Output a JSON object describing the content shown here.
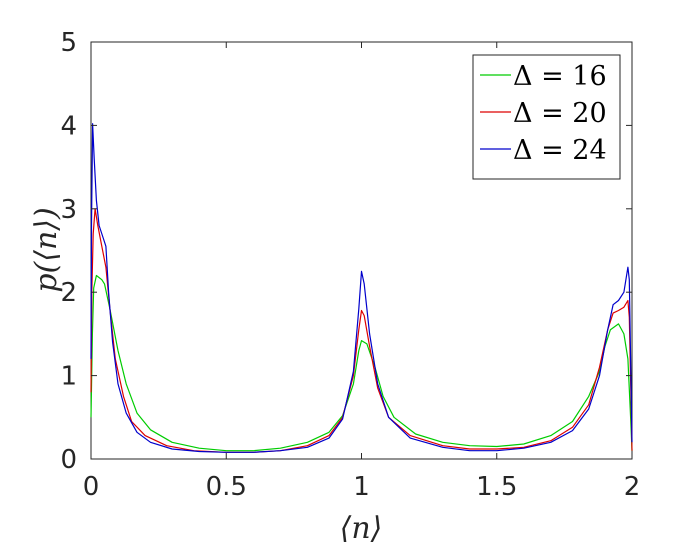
{
  "chart_data": {
    "type": "line",
    "xlabel": "⟨n⟩",
    "ylabel": "p(⟨n⟩)",
    "xlim": [
      0,
      2
    ],
    "ylim": [
      0,
      5
    ],
    "x_ticks": [
      "0",
      "0.5",
      "1",
      "1.5",
      "2"
    ],
    "y_ticks": [
      "0",
      "1",
      "2",
      "3",
      "4",
      "5"
    ],
    "legend_position": "top-right",
    "grid": false,
    "series": [
      {
        "name": "Δ = 16",
        "color": "#00cc00",
        "points": [
          [
            0,
            0.5
          ],
          [
            0.005,
            1.5
          ],
          [
            0.01,
            2.05
          ],
          [
            0.02,
            2.2
          ],
          [
            0.04,
            2.15
          ],
          [
            0.05,
            2.1
          ],
          [
            0.07,
            1.8
          ],
          [
            0.1,
            1.3
          ],
          [
            0.13,
            0.9
          ],
          [
            0.17,
            0.55
          ],
          [
            0.22,
            0.35
          ],
          [
            0.3,
            0.2
          ],
          [
            0.4,
            0.13
          ],
          [
            0.5,
            0.1
          ],
          [
            0.6,
            0.1
          ],
          [
            0.7,
            0.13
          ],
          [
            0.8,
            0.2
          ],
          [
            0.88,
            0.32
          ],
          [
            0.93,
            0.52
          ],
          [
            0.97,
            0.9
          ],
          [
            0.99,
            1.3
          ],
          [
            1.0,
            1.42
          ],
          [
            1.02,
            1.38
          ],
          [
            1.05,
            1.1
          ],
          [
            1.08,
            0.75
          ],
          [
            1.12,
            0.5
          ],
          [
            1.2,
            0.3
          ],
          [
            1.3,
            0.2
          ],
          [
            1.4,
            0.16
          ],
          [
            1.5,
            0.15
          ],
          [
            1.6,
            0.18
          ],
          [
            1.7,
            0.28
          ],
          [
            1.78,
            0.45
          ],
          [
            1.84,
            0.75
          ],
          [
            1.88,
            1.05
          ],
          [
            1.9,
            1.35
          ],
          [
            1.92,
            1.55
          ],
          [
            1.95,
            1.62
          ],
          [
            1.97,
            1.5
          ],
          [
            1.985,
            1.2
          ],
          [
            1.995,
            0.5
          ],
          [
            2.0,
            0.1
          ]
        ]
      },
      {
        "name": "Δ = 20",
        "color": "#dd0000",
        "points": [
          [
            0,
            0.8
          ],
          [
            0.003,
            2.0
          ],
          [
            0.008,
            2.7
          ],
          [
            0.015,
            3.0
          ],
          [
            0.025,
            2.8
          ],
          [
            0.04,
            2.55
          ],
          [
            0.055,
            2.3
          ],
          [
            0.07,
            1.8
          ],
          [
            0.09,
            1.2
          ],
          [
            0.12,
            0.75
          ],
          [
            0.15,
            0.45
          ],
          [
            0.2,
            0.28
          ],
          [
            0.28,
            0.16
          ],
          [
            0.38,
            0.1
          ],
          [
            0.5,
            0.08
          ],
          [
            0.6,
            0.08
          ],
          [
            0.7,
            0.1
          ],
          [
            0.8,
            0.16
          ],
          [
            0.88,
            0.28
          ],
          [
            0.93,
            0.5
          ],
          [
            0.97,
            1.0
          ],
          [
            0.99,
            1.55
          ],
          [
            1.0,
            1.78
          ],
          [
            1.01,
            1.72
          ],
          [
            1.03,
            1.35
          ],
          [
            1.06,
            0.85
          ],
          [
            1.1,
            0.5
          ],
          [
            1.18,
            0.28
          ],
          [
            1.3,
            0.16
          ],
          [
            1.4,
            0.12
          ],
          [
            1.5,
            0.12
          ],
          [
            1.6,
            0.14
          ],
          [
            1.7,
            0.22
          ],
          [
            1.78,
            0.38
          ],
          [
            1.84,
            0.65
          ],
          [
            1.88,
            1.1
          ],
          [
            1.91,
            1.55
          ],
          [
            1.93,
            1.75
          ],
          [
            1.95,
            1.78
          ],
          [
            1.97,
            1.82
          ],
          [
            1.985,
            1.9
          ],
          [
            1.99,
            1.7
          ],
          [
            1.997,
            0.6
          ],
          [
            2.0,
            0.1
          ]
        ]
      },
      {
        "name": "Δ = 24",
        "color": "#0000cc",
        "points": [
          [
            0,
            1.2
          ],
          [
            0.002,
            2.8
          ],
          [
            0.006,
            4.02
          ],
          [
            0.012,
            3.6
          ],
          [
            0.02,
            3.1
          ],
          [
            0.03,
            2.8
          ],
          [
            0.045,
            2.65
          ],
          [
            0.055,
            2.55
          ],
          [
            0.065,
            2.0
          ],
          [
            0.08,
            1.4
          ],
          [
            0.1,
            0.9
          ],
          [
            0.13,
            0.55
          ],
          [
            0.17,
            0.32
          ],
          [
            0.22,
            0.2
          ],
          [
            0.3,
            0.12
          ],
          [
            0.4,
            0.09
          ],
          [
            0.5,
            0.08
          ],
          [
            0.6,
            0.08
          ],
          [
            0.7,
            0.1
          ],
          [
            0.8,
            0.14
          ],
          [
            0.88,
            0.25
          ],
          [
            0.93,
            0.48
          ],
          [
            0.97,
            1.05
          ],
          [
            0.99,
            1.8
          ],
          [
            1.0,
            2.25
          ],
          [
            1.01,
            2.1
          ],
          [
            1.03,
            1.5
          ],
          [
            1.06,
            0.9
          ],
          [
            1.1,
            0.5
          ],
          [
            1.18,
            0.25
          ],
          [
            1.3,
            0.14
          ],
          [
            1.4,
            0.1
          ],
          [
            1.5,
            0.1
          ],
          [
            1.6,
            0.13
          ],
          [
            1.7,
            0.2
          ],
          [
            1.78,
            0.34
          ],
          [
            1.84,
            0.6
          ],
          [
            1.88,
            1.0
          ],
          [
            1.91,
            1.55
          ],
          [
            1.93,
            1.85
          ],
          [
            1.95,
            1.9
          ],
          [
            1.97,
            2.0
          ],
          [
            1.985,
            2.3
          ],
          [
            1.99,
            2.15
          ],
          [
            1.995,
            1.2
          ],
          [
            2.0,
            0.2
          ]
        ]
      }
    ]
  }
}
